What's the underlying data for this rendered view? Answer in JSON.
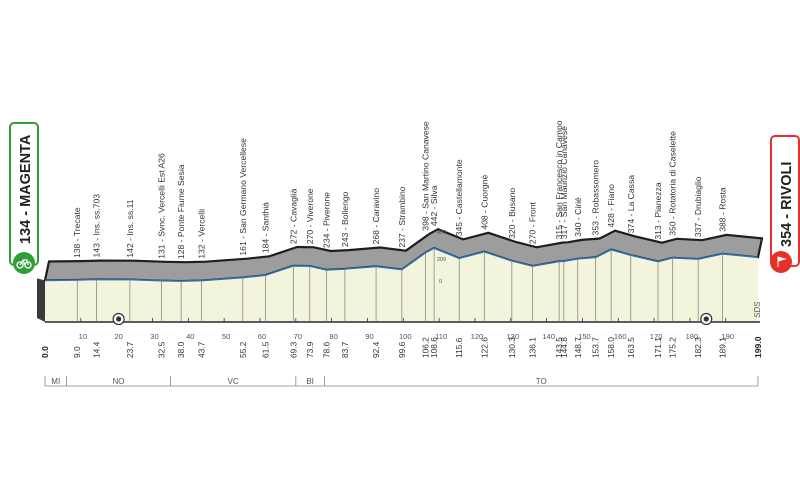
{
  "start": {
    "label": "134 - MAGENTA",
    "color": "#2e9d3a"
  },
  "finish": {
    "label": "354 - RIVOLI",
    "color": "#e53129"
  },
  "brand": "SDS",
  "scale_marks": {
    "e400": "400",
    "e200": "200",
    "e0": "0"
  },
  "chart_data": {
    "type": "area",
    "xlabel": "",
    "ylabel": "",
    "xlim": [
      0,
      199.0
    ],
    "x_ticks": [
      "10",
      "20",
      "30",
      "40",
      "50",
      "60",
      "70",
      "80",
      "90",
      "100",
      "110",
      "120",
      "130",
      "140",
      "150",
      "160",
      "170",
      "180",
      "190"
    ],
    "sprint_markers_km": [
      20,
      184
    ],
    "waypoints": [
      {
        "km": 0.0,
        "label": "",
        "km_label": "0.0"
      },
      {
        "km": 9.0,
        "label": "138 - Trecate",
        "km_label": "9.0"
      },
      {
        "km": 14.4,
        "label": "143 - Ins. ss.703",
        "km_label": "14.4"
      },
      {
        "km": 23.7,
        "label": "142 - Ins. ss.11",
        "km_label": "23.7"
      },
      {
        "km": 32.5,
        "label": "131 - Svnc. Vercelli Est A26",
        "km_label": "32.5"
      },
      {
        "km": 38.0,
        "label": "128 - Ponte Fiume Sesia",
        "km_label": "38.0"
      },
      {
        "km": 43.7,
        "label": "132 - Vercelli",
        "km_label": "43.7"
      },
      {
        "km": 55.2,
        "label": "161 - San Germano Vercellese",
        "km_label": "55.2"
      },
      {
        "km": 61.5,
        "label": "184 - Santhià",
        "km_label": "61.5"
      },
      {
        "km": 69.3,
        "label": "272 - Cavaglià",
        "km_label": "69.3"
      },
      {
        "km": 73.9,
        "label": "270 - Viverone",
        "km_label": "73.9"
      },
      {
        "km": 78.6,
        "label": "234 - Piverone",
        "km_label": "78.6"
      },
      {
        "km": 83.7,
        "label": "243 - Bollengo",
        "km_label": "83.7"
      },
      {
        "km": 92.4,
        "label": "268 - Caravino",
        "km_label": "92.4"
      },
      {
        "km": 99.6,
        "label": "237 - Strambino",
        "km_label": "99.6"
      },
      {
        "km": 106.2,
        "label": "398 - San Martino Canavese",
        "km_label": "106.2"
      },
      {
        "km": 108.6,
        "label": "442 - Silva",
        "km_label": "108.6"
      },
      {
        "km": 115.6,
        "label": "345 - Castellamonte",
        "km_label": "115.6"
      },
      {
        "km": 122.6,
        "label": "408 - Cuorgnè",
        "km_label": "122.6"
      },
      {
        "km": 130.3,
        "label": "320 - Busano",
        "km_label": "130.3"
      },
      {
        "km": 136.1,
        "label": "270 - Front",
        "km_label": "136.1"
      },
      {
        "km": 143.5,
        "label": "315 - San Francesco in Campo",
        "km_label": "143.5"
      },
      {
        "km": 144.8,
        "label": "317 - San Maurizio Canavese",
        "km_label": "144.8"
      },
      {
        "km": 148.7,
        "label": "340 - Cirié",
        "km_label": "148.7"
      },
      {
        "km": 153.7,
        "label": "353 - Robassomero",
        "km_label": "153.7"
      },
      {
        "km": 158.0,
        "label": "428 - Fiano",
        "km_label": "158.0"
      },
      {
        "km": 163.5,
        "label": "374 - La Cassa",
        "km_label": "163.5"
      },
      {
        "km": 171.1,
        "label": "313 - Pianezza",
        "km_label": "171.1"
      },
      {
        "km": 175.2,
        "label": "350 - Rotatoria  di Caselette",
        "km_label": "175.2"
      },
      {
        "km": 182.3,
        "label": "337 - Drubiaglio",
        "km_label": "182.3"
      },
      {
        "km": 189.1,
        "label": "388 - Rosta",
        "km_label": "189.1"
      },
      {
        "km": 199.0,
        "label": "",
        "km_label": "199.0"
      }
    ],
    "provinces": [
      {
        "label": "MI",
        "from_km": 0,
        "to_km": 6
      },
      {
        "label": "NO",
        "from_km": 6,
        "to_km": 35
      },
      {
        "label": "VC",
        "from_km": 35,
        "to_km": 70
      },
      {
        "label": "BI",
        "from_km": 70,
        "to_km": 78
      },
      {
        "label": "TO",
        "from_km": 78,
        "to_km": 199
      }
    ]
  }
}
